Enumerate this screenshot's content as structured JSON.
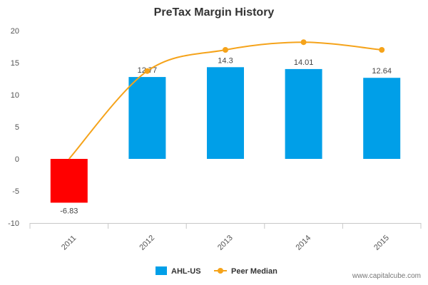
{
  "chart_data": {
    "type": "bar",
    "title": "PreTax Margin History",
    "categories": [
      "2011",
      "2012",
      "2013",
      "2014",
      "2015"
    ],
    "series": [
      {
        "name": "AHL-US",
        "kind": "bar",
        "values": [
          -6.83,
          12.77,
          14.3,
          14.01,
          12.64
        ],
        "labels": [
          "-6.83",
          "12.77",
          "14.3",
          "14.01",
          "12.64"
        ],
        "color": "#009fe8",
        "negative_color": "#ff0000"
      },
      {
        "name": "Peer Median",
        "kind": "line",
        "values": [
          0,
          13.7,
          17.0,
          18.2,
          17.0
        ],
        "color": "#f5a31a"
      }
    ],
    "ylim": [
      -10,
      20
    ],
    "yticks": [
      -10,
      -5,
      0,
      5,
      10,
      15,
      20
    ],
    "ytick_labels": [
      "-10",
      "-5",
      "0",
      "5",
      "10",
      "15",
      "20"
    ],
    "xlabel": "",
    "ylabel": "",
    "grid": false,
    "legend_position": "bottom-center"
  },
  "watermark": "www.capitalcube.com"
}
